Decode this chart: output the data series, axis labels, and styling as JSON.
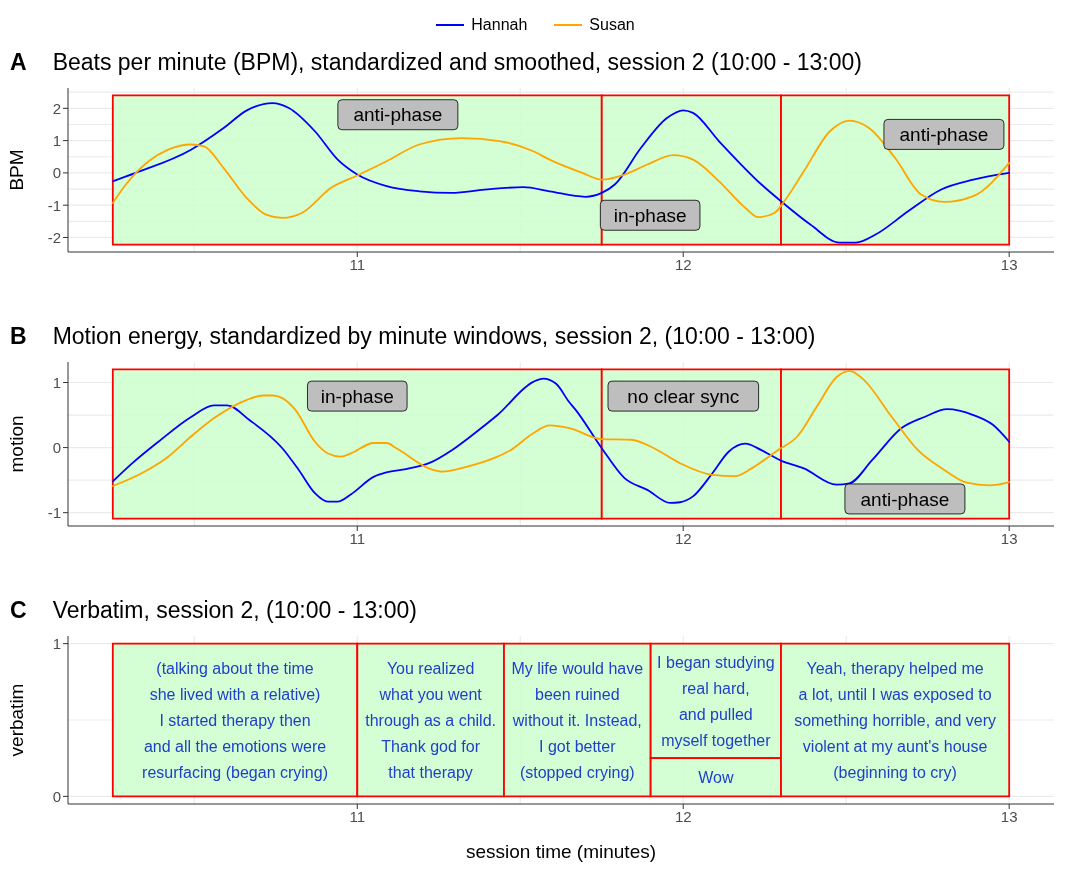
{
  "chart_data": [
    {
      "type": "line",
      "title": "Beats per minute (BPM), standardized and smoothed, session 2 (10:00 - 13:00)",
      "ylabel": "BPM",
      "legend": "top",
      "grid": true,
      "marker": "none",
      "line_style": "solid",
      "xlim": [
        10.1125,
        13.1375
      ],
      "xticks": [
        11,
        12,
        13
      ],
      "ylim": [
        -2.45,
        2.63
      ],
      "yticks": [
        -2,
        -1,
        0,
        1,
        2
      ],
      "series": [
        {
          "name": "Hannah",
          "color": "#0000ff",
          "x": [
            10.25,
            10.32,
            10.49,
            10.59,
            10.66,
            10.74,
            10.79,
            10.87,
            10.94,
            11.0,
            11.09,
            11.19,
            11.29,
            11.39,
            11.51,
            11.59,
            11.7,
            11.75,
            11.79,
            11.87,
            11.95,
            12.0,
            12.03,
            12.11,
            12.24,
            12.3,
            12.39,
            12.48,
            12.53,
            12.59,
            12.69,
            12.79,
            12.89,
            13.0
          ],
          "values": [
            -0.26,
            0,
            0.72,
            1.39,
            1.93,
            2.16,
            2.01,
            1.29,
            0.41,
            -0.05,
            -0.41,
            -0.57,
            -0.62,
            -0.52,
            -0.44,
            -0.57,
            -0.74,
            -0.62,
            -0.36,
            0.77,
            1.7,
            1.94,
            1.86,
            0.98,
            -0.36,
            -0.88,
            -1.6,
            -2.16,
            -2.16,
            -1.91,
            -1.19,
            -0.52,
            -0.21,
            0
          ]
        },
        {
          "name": "Susan",
          "color": "#ffa500",
          "x": [
            10.25,
            10.29,
            10.36,
            10.42,
            10.49,
            10.53,
            10.59,
            10.66,
            10.72,
            10.77,
            10.83,
            10.92,
            11.0,
            11.09,
            11.19,
            11.32,
            11.44,
            11.54,
            11.59,
            11.69,
            11.75,
            11.82,
            11.89,
            11.97,
            12.03,
            12.11,
            12.19,
            12.23,
            12.28,
            12.31,
            12.37,
            12.45,
            12.51,
            12.57,
            12.65,
            12.73,
            12.8,
            12.89,
            13.0
          ],
          "values": [
            -0.93,
            -0.36,
            0.36,
            0.72,
            0.88,
            0.82,
            0.15,
            -0.77,
            -1.29,
            -1.39,
            -1.24,
            -0.46,
            -0.08,
            0.36,
            0.88,
            1.08,
            0.98,
            0.67,
            0.41,
            0,
            -0.21,
            -0.05,
            0.26,
            0.55,
            0.41,
            -0.26,
            -1.08,
            -1.37,
            -1.24,
            -0.88,
            0.05,
            1.29,
            1.62,
            1.39,
            0.46,
            -0.67,
            -0.9,
            -0.72,
            0.31
          ]
        }
      ],
      "bands": [
        {
          "axis": "x",
          "from": 10.25,
          "to": 11.75,
          "label": "anti-phase",
          "color": "#ccffcc"
        },
        {
          "axis": "x",
          "from": 11.75,
          "to": 12.3,
          "label": "in-phase",
          "color": "#ccffcc"
        },
        {
          "axis": "x",
          "from": 12.3,
          "to": 13.0,
          "label": "anti-phase",
          "color": "#ccffcc"
        }
      ],
      "annotations": [
        "A"
      ]
    },
    {
      "type": "line",
      "title": "Motion energy, standardized by minute windows, session 2, (10:00 - 13:00)",
      "ylabel": "motion",
      "grid": true,
      "marker": "none",
      "line_style": "solid",
      "xlim": [
        10.1125,
        13.1375
      ],
      "xticks": [
        11,
        12,
        13
      ],
      "ylim": [
        -1.205,
        1.315
      ],
      "yticks": [
        -1,
        0,
        1
      ],
      "series": [
        {
          "color": "#0000ff",
          "x": [
            10.25,
            10.31,
            10.39,
            10.49,
            10.56,
            10.6,
            10.67,
            10.77,
            10.82,
            10.87,
            10.91,
            10.94,
            10.98,
            11.05,
            11.09,
            11.15,
            11.22,
            11.29,
            11.36,
            11.43,
            11.54,
            11.57,
            11.61,
            11.65,
            11.67,
            11.75,
            11.82,
            11.89,
            11.96,
            11.99,
            12.03,
            12.09,
            12.14,
            12.19,
            12.24,
            12.3,
            12.37,
            12.47,
            12.51,
            12.58,
            12.67,
            12.74,
            12.81,
            12.89,
            12.95,
            13.0
          ],
          "values": [
            -0.52,
            -0.24,
            0.09,
            0.47,
            0.65,
            0.65,
            0.42,
            -0.01,
            -0.34,
            -0.7,
            -0.83,
            -0.83,
            -0.72,
            -0.45,
            -0.38,
            -0.33,
            -0.24,
            -0.04,
            0.22,
            0.5,
            1.01,
            1.06,
            0.98,
            0.7,
            0.58,
            -0.01,
            -0.47,
            -0.65,
            -0.85,
            -0.84,
            -0.75,
            -0.39,
            -0.06,
            0.06,
            -0.04,
            -0.2,
            -0.32,
            -0.57,
            -0.55,
            -0.19,
            0.3,
            0.47,
            0.59,
            0.5,
            0.35,
            0.09
          ]
        },
        {
          "color": "#ffa500",
          "x": [
            10.25,
            10.34,
            10.42,
            10.49,
            10.56,
            10.66,
            10.71,
            10.74,
            10.77,
            10.81,
            10.87,
            10.91,
            10.95,
            10.98,
            11.05,
            11.09,
            11.12,
            11.23,
            11.26,
            11.34,
            11.43,
            11.47,
            11.54,
            11.59,
            11.65,
            11.75,
            11.84,
            11.91,
            11.99,
            12.09,
            12.16,
            12.21,
            12.29,
            12.35,
            12.41,
            12.47,
            12.51,
            12.55,
            12.64,
            12.72,
            12.8,
            12.87,
            12.94,
            13.0
          ],
          "values": [
            -0.59,
            -0.39,
            -0.14,
            0.17,
            0.45,
            0.73,
            0.8,
            0.8,
            0.76,
            0.58,
            0.09,
            -0.09,
            -0.14,
            -0.09,
            0.07,
            0.07,
            -0.01,
            -0.34,
            -0.37,
            -0.29,
            -0.14,
            -0.04,
            0.22,
            0.34,
            0.3,
            0.13,
            0.12,
            -0.01,
            -0.24,
            -0.42,
            -0.44,
            -0.32,
            -0.04,
            0.17,
            0.63,
            1.08,
            1.18,
            1.06,
            0.47,
            -0.04,
            -0.34,
            -0.54,
            -0.58,
            -0.53
          ]
        }
      ],
      "bands": [
        {
          "axis": "x",
          "from": 10.25,
          "to": 11.75,
          "label": "in-phase",
          "color": "#ccffcc"
        },
        {
          "axis": "x",
          "from": 11.75,
          "to": 12.3,
          "label": "no clear sync",
          "color": "#ccffcc"
        },
        {
          "axis": "x",
          "from": 12.3,
          "to": 13.0,
          "label": "anti-phase",
          "color": "#ccffcc"
        }
      ],
      "annotations": [
        "B"
      ]
    },
    {
      "type": "line",
      "title": "Verbatim, session 2, (10:00 - 13:00)",
      "xlabel": "session time (minutes)",
      "ylabel": "verbatim",
      "grid": true,
      "xlim": [
        10.1125,
        13.1375
      ],
      "xticks": [
        11,
        12,
        13
      ],
      "ylim": [
        -0.05,
        1.05
      ],
      "yticks": [
        0,
        1
      ],
      "bands": [
        {
          "axis": "x",
          "from": 10.25,
          "to": 11.0,
          "label": "(talking about the time\nshe lived with a relative)\nI started therapy then\nand all the emotions were\nresurfacing (began crying)",
          "color": "#ccffcc"
        },
        {
          "axis": "x",
          "from": 11.0,
          "to": 11.45,
          "label": "You realized\nwhat you went\nthrough as a child.\nThank god for\nthat therapy",
          "color": "#ccffcc"
        },
        {
          "axis": "x",
          "from": 11.45,
          "to": 11.9,
          "label": "My life would have\nbeen ruined\nwithout it. Instead,\nI got better\n(stopped crying)",
          "color": "#ccffcc"
        },
        {
          "axis": "x",
          "from": 11.9,
          "to": 12.3,
          "label": "I began studying\nreal hard,\nand pulled\nmyself together",
          "color": "#ccffcc"
        },
        {
          "axis": "x",
          "from": 11.9,
          "to": 12.3,
          "label": "Wow",
          "color": "#ccffcc"
        },
        {
          "axis": "x",
          "from": 12.3,
          "to": 13.0,
          "label": "Yeah, therapy helped me\na lot, until I was exposed to\nsomething horrible, and very\nviolent at my aunt's house\n(beginning to cry)",
          "color": "#ccffcc"
        }
      ],
      "annotations": [
        "C"
      ]
    }
  ]
}
